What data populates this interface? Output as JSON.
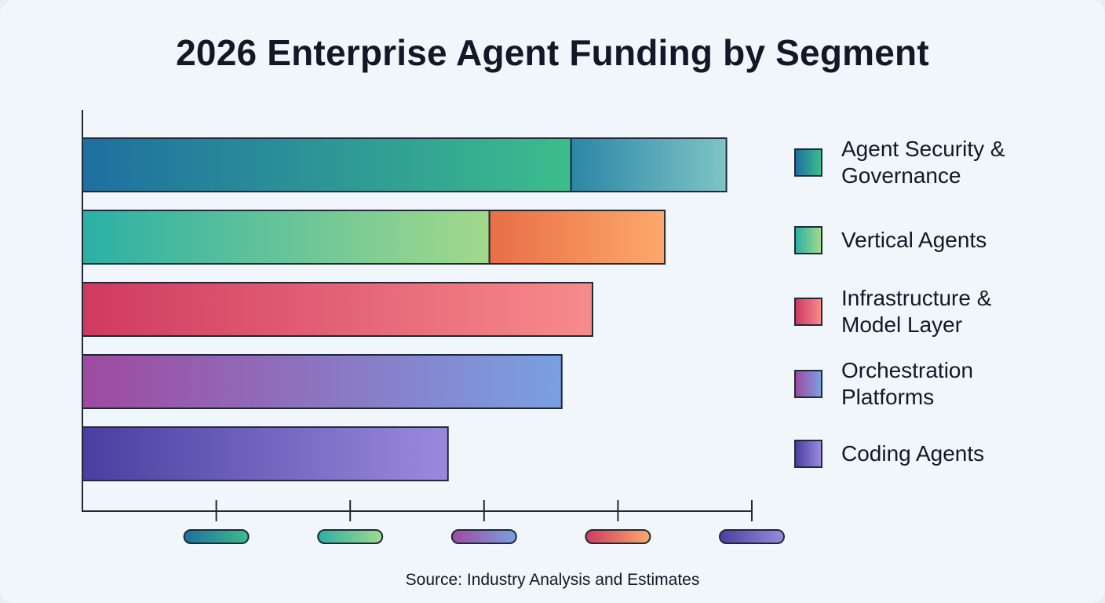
{
  "chart_data": {
    "type": "bar",
    "orientation": "horizontal",
    "stacked": true,
    "title": "2026 Enterprise Agent Funding by Segment",
    "xlabel": "",
    "ylabel": "",
    "xlim": [
      0,
      5
    ],
    "x_ticks": [
      1,
      2,
      3,
      4,
      5
    ],
    "grid": false,
    "legend_position": "right",
    "categories": [
      "Agent Security & Governance",
      "Vertical Agents",
      "Infrastructure & Model Layer",
      "Orchestration Platforms",
      "Coding Agents"
    ],
    "series": [
      {
        "values": [
          3.65,
          3.04,
          3.81,
          3.58,
          2.73
        ],
        "gradients": [
          [
            "#1e6fa0",
            "#3cbd8c"
          ],
          [
            "#2bb0a5",
            "#a3d98c"
          ],
          [
            "#cf3a60",
            "#f78b8b"
          ],
          [
            "#9e4aa0",
            "#7aa0e2"
          ],
          [
            "#4b3ea0",
            "#9a8ade"
          ]
        ]
      },
      {
        "values": [
          1.16,
          1.31,
          0,
          0,
          0
        ],
        "gradients": [
          [
            "#2c86a6",
            "#7fc4c6"
          ],
          [
            "#e86e46",
            "#fda96b"
          ],
          null,
          null,
          null
        ]
      }
    ],
    "legend": [
      {
        "label": "Agent Security & Governance",
        "gradient": [
          "#1e6fa0",
          "#3cbd8c"
        ]
      },
      {
        "label": "Vertical Agents",
        "gradient": [
          "#2bb0a5",
          "#a3d98c"
        ]
      },
      {
        "label": "Infrastructure & Model Layer",
        "gradient": [
          "#cf3a60",
          "#f78b8b"
        ]
      },
      {
        "label": "Orchestration Platforms",
        "gradient": [
          "#9e4aa0",
          "#7aa0e2"
        ]
      },
      {
        "label": "Coding Agents",
        "gradient": [
          "#4b3ea0",
          "#9a8ade"
        ]
      }
    ],
    "tick_marker_gradients": [
      [
        "#1e6fa0",
        "#3cbd8c"
      ],
      [
        "#2bb0a5",
        "#a3d98c"
      ],
      [
        "#9e4aa0",
        "#7aa0e2"
      ],
      [
        "#cf3a60",
        "#fda96b"
      ],
      [
        "#4b3ea0",
        "#9a8ade"
      ]
    ],
    "source": "Source: Industry Analysis and Estimates"
  }
}
